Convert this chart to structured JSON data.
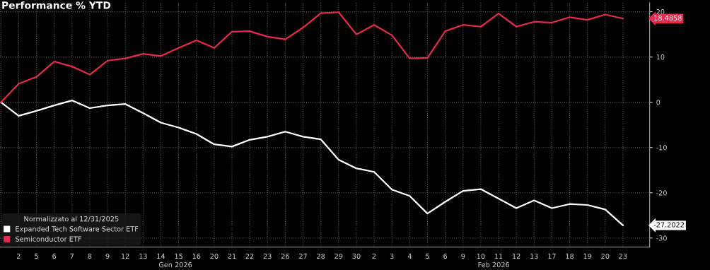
{
  "chart_data": {
    "type": "line",
    "title": "Performance % YTD",
    "categories": [
      null,
      "2",
      "5",
      "6",
      "7",
      "8",
      "9",
      "12",
      "13",
      "14",
      "15",
      "16",
      "20",
      "21",
      "22",
      "23",
      "26",
      "27",
      "28",
      "29",
      "30",
      "2",
      "3",
      "4",
      "5",
      "6",
      "9",
      "10",
      "11",
      "12",
      "13",
      "17",
      "18",
      "19",
      "20",
      "23"
    ],
    "series": [
      {
        "name": "Expanded Tech Software Sector ETF",
        "color": "#ffffff",
        "values": [
          0,
          -3.0,
          -1.9,
          -0.7,
          0.4,
          -1.3,
          -0.7,
          -0.4,
          -2.4,
          -4.5,
          -5.6,
          -7.0,
          -9.3,
          -9.8,
          -8.3,
          -7.6,
          -6.5,
          -7.6,
          -8.2,
          -12.7,
          -14.6,
          -15.4,
          -19.3,
          -20.7,
          -24.6,
          -22.0,
          -19.6,
          -19.2,
          -21.3,
          -23.4,
          -21.7,
          -23.4,
          -22.5,
          -22.7,
          -23.7,
          -27.2
        ]
      },
      {
        "name": "Semiconductor ETF",
        "color": "#e8294b",
        "values": [
          0,
          4.1,
          5.6,
          9.0,
          7.9,
          6.1,
          9.2,
          9.7,
          10.7,
          10.2,
          12.0,
          13.7,
          12.0,
          15.6,
          15.7,
          14.5,
          13.9,
          16.5,
          19.7,
          19.9,
          15.0,
          17.1,
          14.8,
          9.7,
          9.8,
          15.7,
          17.1,
          16.7,
          19.6,
          16.7,
          17.8,
          17.6,
          18.8,
          18.2,
          19.4,
          18.5
        ]
      }
    ],
    "legend_title": "Normalizzato al 12/31/2025",
    "annotations": [
      "-27.2022",
      "18.4858",
      "Gen 2026",
      "Feb 2026"
    ],
    "ylim": [
      -32,
      22
    ],
    "yticks": [
      -30,
      -20,
      -10,
      0,
      10,
      20
    ],
    "grid": true,
    "legend": "bottom left",
    "marker": "none",
    "line_style": "solid"
  }
}
